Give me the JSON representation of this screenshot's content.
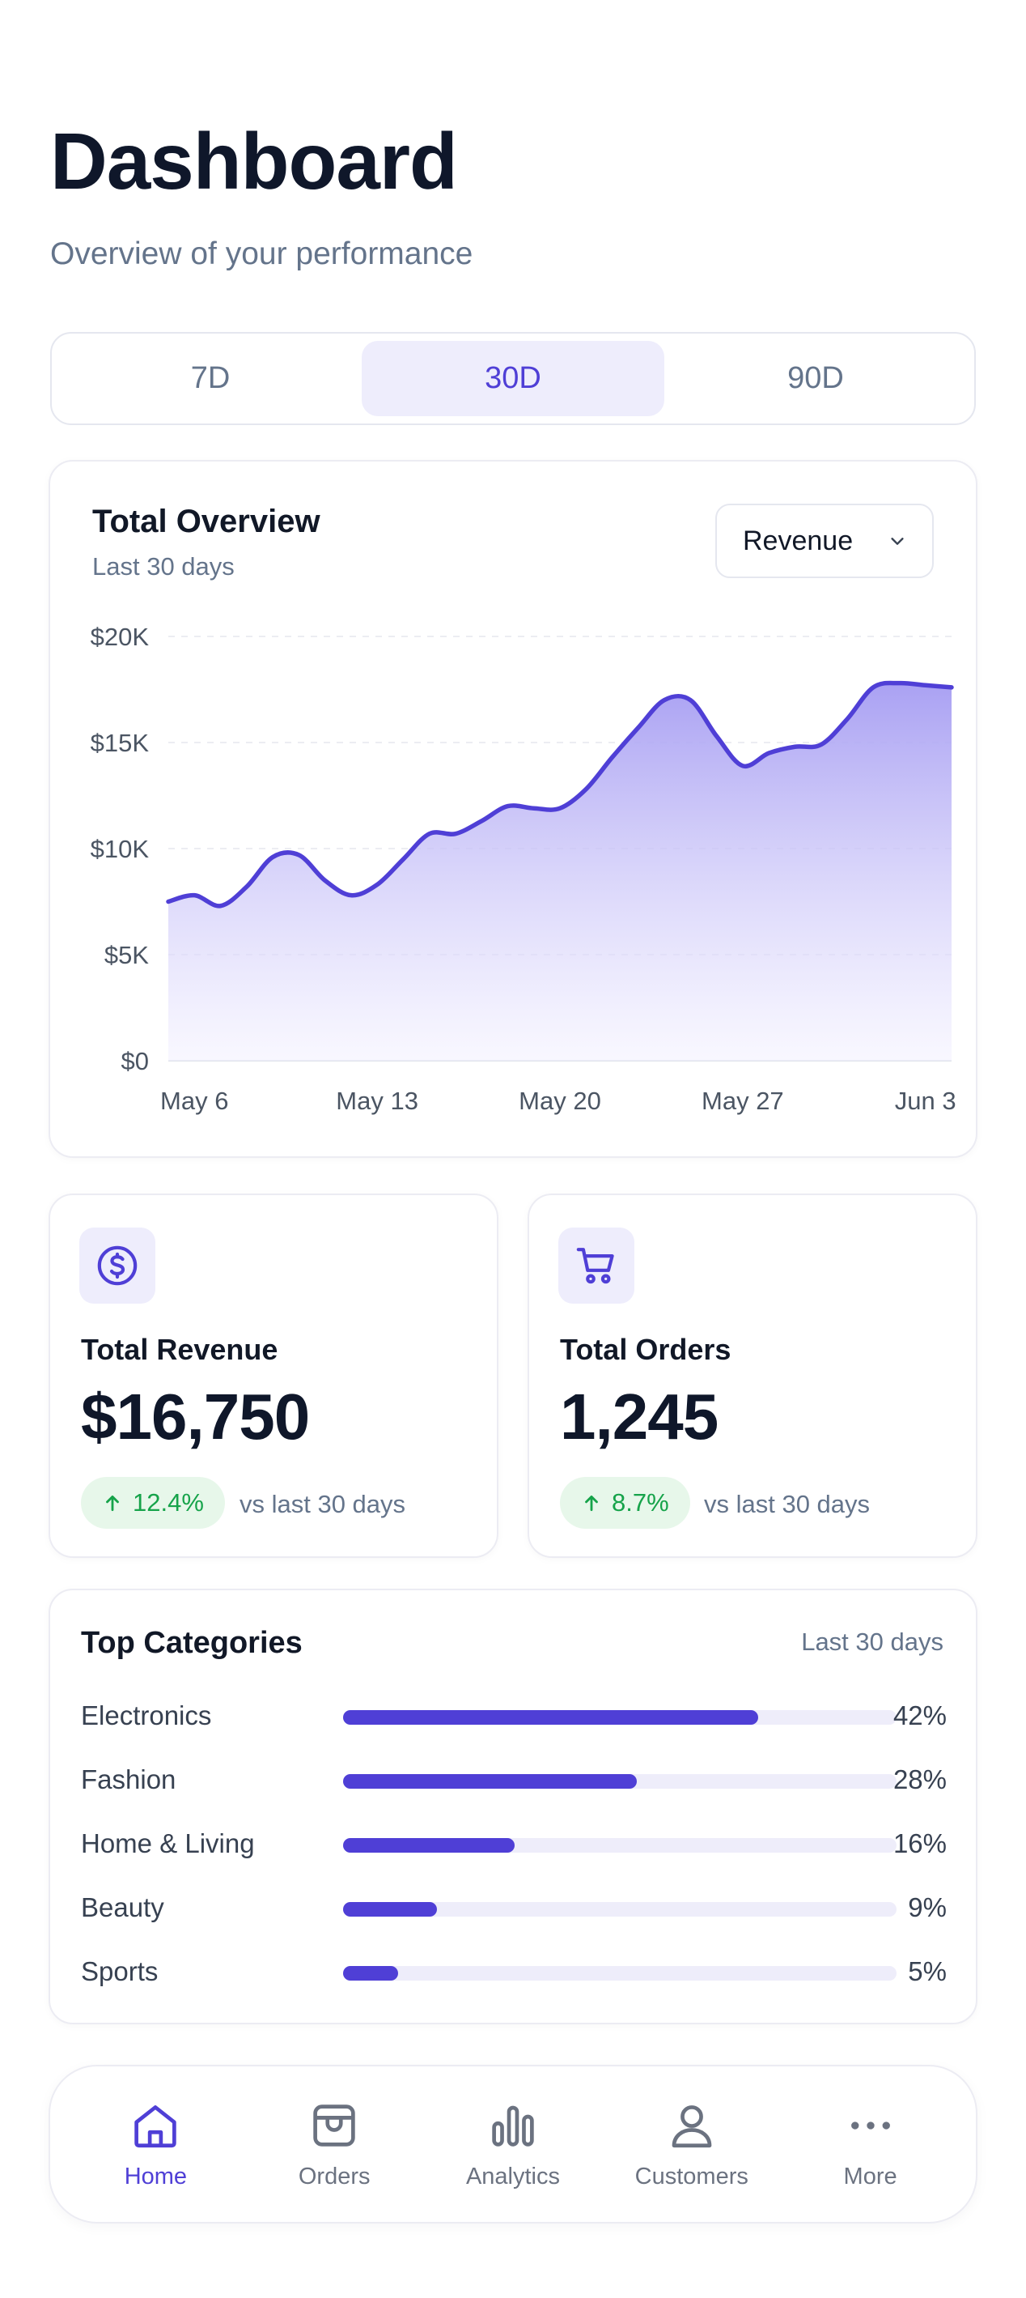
{
  "header": {
    "title": "Dashboard",
    "subtitle": "Overview of your performance"
  },
  "range_tabs": {
    "items": [
      "7D",
      "30D",
      "90D"
    ],
    "selected": "30D"
  },
  "overview": {
    "title": "Total Overview",
    "subtitle": "Last 30 days",
    "metric_select": {
      "value": "Revenue",
      "icon": "chevron-down-icon"
    }
  },
  "chart_data": {
    "type": "area",
    "title": "Total Overview",
    "subtitle": "Last 30 days",
    "xlabel": "",
    "ylabel": "",
    "x_tick_labels": [
      "May 6",
      "May 13",
      "May 20",
      "May 27",
      "Jun 3"
    ],
    "y_tick_labels": [
      "$0",
      "$5K",
      "$10K",
      "$15K",
      "$20K"
    ],
    "ylim": [
      0,
      20000
    ],
    "x": [
      "May 5",
      "May 6",
      "May 7",
      "May 8",
      "May 9",
      "May 10",
      "May 11",
      "May 12",
      "May 13",
      "May 14",
      "May 15",
      "May 16",
      "May 17",
      "May 18",
      "May 19",
      "May 20",
      "May 21",
      "May 22",
      "May 23",
      "May 24",
      "May 25",
      "May 26",
      "May 27",
      "May 28",
      "May 29",
      "May 30",
      "May 31",
      "Jun 1",
      "Jun 2",
      "Jun 3",
      "Jun 4"
    ],
    "series": [
      {
        "values": [
          7500,
          7800,
          7300,
          8200,
          9600,
          9700,
          8500,
          7800,
          8300,
          9500,
          10700,
          10700,
          11300,
          12000,
          11900,
          11900,
          12800,
          14300,
          15700,
          17000,
          17000,
          15300,
          13900,
          14500,
          14800,
          14900,
          16100,
          17600,
          17800,
          17700,
          17600
        ]
      }
    ],
    "grid": true,
    "colors": {
      "line": "#4f3fd6",
      "fill_top": "#a59cf2",
      "fill_bottom": "#f3f1ff"
    }
  },
  "stats": [
    {
      "icon": "dollar-circle-icon",
      "label": "Total Revenue",
      "value": "$16,750",
      "change": "12.4%",
      "change_icon": "arrow-up-icon",
      "comparison": "vs last 30 days"
    },
    {
      "icon": "shopping-cart-icon",
      "label": "Total Orders",
      "value": "1,245",
      "change": "8.7%",
      "change_icon": "arrow-up-icon",
      "comparison": "vs last 30 days"
    }
  ],
  "categories": {
    "title": "Top Categories",
    "range": "Last 30 days",
    "items": [
      {
        "name": "Electronics",
        "percent": "42%",
        "fill": 0.75
      },
      {
        "name": "Fashion",
        "percent": "28%",
        "fill": 0.53
      },
      {
        "name": "Home & Living",
        "percent": "16%",
        "fill": 0.31
      },
      {
        "name": "Beauty",
        "percent": "9%",
        "fill": 0.17
      },
      {
        "name": "Sports",
        "percent": "5%",
        "fill": 0.1
      }
    ]
  },
  "tabbar": {
    "items": [
      {
        "label": "Home",
        "icon": "home-icon"
      },
      {
        "label": "Orders",
        "icon": "box-icon"
      },
      {
        "label": "Analytics",
        "icon": "bar-chart-icon"
      },
      {
        "label": "Customers",
        "icon": "user-icon"
      },
      {
        "label": "More",
        "icon": "more-dots-icon"
      }
    ],
    "active": "Home"
  },
  "colors": {
    "accent": "#4f3fd6",
    "accent_soft": "#eeedfc",
    "positive": "#16a34a",
    "positive_bg": "#e7f7ea"
  }
}
